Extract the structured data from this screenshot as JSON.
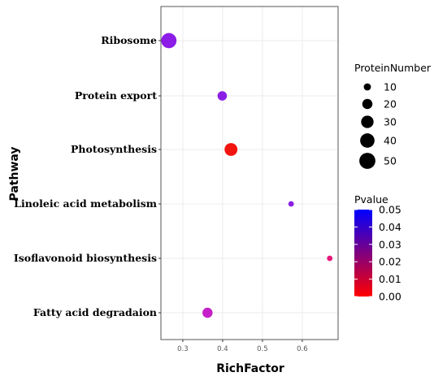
{
  "chart_data": {
    "type": "scatter",
    "xlabel": "RichFactor",
    "ylabel": "Pathway",
    "xlim": [
      0.245,
      0.69
    ],
    "x_ticks": [
      0.3,
      0.4,
      0.5,
      0.6
    ],
    "x_tick_labels": [
      "0.3",
      "0.4",
      "0.5",
      "0.6"
    ],
    "grid": true,
    "categories": [
      "Ribosome",
      "Protein export",
      "Photosynthesis",
      "Linoleic acid metabolism",
      "Isoflavonoid biosynthesis",
      "Fatty acid degradaion"
    ],
    "points": [
      {
        "pathway": "Ribosome",
        "rich_factor": 0.265,
        "protein_number": 45,
        "pvalue": 0.043,
        "color": "#8b1de6"
      },
      {
        "pathway": "Protein export",
        "rich_factor": 0.399,
        "protein_number": 17,
        "pvalue": 0.043,
        "color": "#8a1ee6"
      },
      {
        "pathway": "Photosynthesis",
        "rich_factor": 0.421,
        "protein_number": 32,
        "pvalue": 0.002,
        "color": "#f2140f"
      },
      {
        "pathway": "Linoleic acid metabolism",
        "rich_factor": 0.572,
        "protein_number": 6,
        "pvalue": 0.043,
        "color": "#8a1fe4"
      },
      {
        "pathway": "Isoflavonoid biosynthesis",
        "rich_factor": 0.669,
        "protein_number": 6,
        "pvalue": 0.017,
        "color": "#e8177a"
      },
      {
        "pathway": "Fatty acid degradaion",
        "rich_factor": 0.362,
        "protein_number": 20,
        "pvalue": 0.031,
        "color": "#c41fc8"
      }
    ],
    "legend_size": {
      "title": "ProteinNumber",
      "placement": "right",
      "items": [
        {
          "label": "10",
          "value": 10
        },
        {
          "label": "20",
          "value": 20
        },
        {
          "label": "30",
          "value": 30
        },
        {
          "label": "40",
          "value": 40
        },
        {
          "label": "50",
          "value": 50
        }
      ]
    },
    "legend_color": {
      "title": "Pvalue",
      "placement": "right",
      "min": 0.0,
      "max": 0.05,
      "low_color": "#ff0000",
      "high_color": "#0000ff",
      "ticks": [
        {
          "label": "0.05",
          "value": 0.05
        },
        {
          "label": "0.04",
          "value": 0.04
        },
        {
          "label": "0.03",
          "value": 0.03
        },
        {
          "label": "0.02",
          "value": 0.02
        },
        {
          "label": "0.01",
          "value": 0.01
        },
        {
          "label": "0.00",
          "value": 0.0
        }
      ]
    },
    "colors": {
      "panel_background": "#ffffff",
      "panel_border": "#555555",
      "grid": "#ebebeb"
    }
  }
}
